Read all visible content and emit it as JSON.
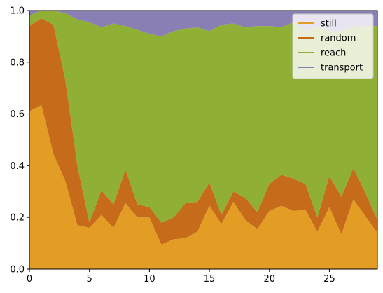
{
  "chart_data": {
    "type": "area",
    "stacked": true,
    "x": [
      0,
      1,
      2,
      3,
      4,
      5,
      6,
      7,
      8,
      9,
      10,
      11,
      12,
      13,
      14,
      15,
      16,
      17,
      18,
      19,
      20,
      21,
      22,
      23,
      24,
      25,
      26,
      27,
      28,
      29
    ],
    "series": [
      {
        "name": "still",
        "color": "#E39C24",
        "values": [
          0.61,
          0.635,
          0.445,
          0.34,
          0.17,
          0.16,
          0.21,
          0.16,
          0.255,
          0.2,
          0.2,
          0.095,
          0.115,
          0.12,
          0.145,
          0.245,
          0.175,
          0.26,
          0.19,
          0.155,
          0.225,
          0.245,
          0.225,
          0.23,
          0.145,
          0.24,
          0.135,
          0.27,
          0.205,
          0.14
        ]
      },
      {
        "name": "random",
        "color": "#C56B1A",
        "values": [
          0.33,
          0.335,
          0.5,
          0.39,
          0.23,
          0.02,
          0.095,
          0.09,
          0.13,
          0.05,
          0.04,
          0.085,
          0.085,
          0.135,
          0.115,
          0.09,
          0.035,
          0.04,
          0.085,
          0.065,
          0.105,
          0.12,
          0.125,
          0.1,
          0.055,
          0.12,
          0.145,
          0.12,
          0.09,
          0.05
        ]
      },
      {
        "name": "reach",
        "color": "#8FB034",
        "values": [
          0.04,
          0.03,
          0.055,
          0.26,
          0.565,
          0.775,
          0.63,
          0.7,
          0.555,
          0.675,
          0.67,
          0.72,
          0.72,
          0.675,
          0.675,
          0.585,
          0.735,
          0.65,
          0.66,
          0.72,
          0.61,
          0.57,
          0.605,
          0.59,
          0.74,
          0.56,
          0.64,
          0.545,
          0.645,
          0.75
        ]
      },
      {
        "name": "transport",
        "color": "#8A7FB4",
        "values": [
          0.02,
          0.0,
          0.0,
          0.01,
          0.035,
          0.045,
          0.065,
          0.05,
          0.06,
          0.075,
          0.09,
          0.1,
          0.08,
          0.07,
          0.065,
          0.08,
          0.055,
          0.05,
          0.065,
          0.06,
          0.06,
          0.065,
          0.045,
          0.08,
          0.06,
          0.08,
          0.08,
          0.065,
          0.06,
          0.06
        ]
      }
    ],
    "xlim": [
      0,
      29
    ],
    "ylim": [
      0,
      1.0
    ],
    "xticks": [
      "0",
      "5",
      "10",
      "15",
      "20",
      "25"
    ],
    "yticks": [
      "0.0",
      "0.2",
      "0.4",
      "0.6",
      "0.8",
      "1.0"
    ],
    "xtick_values": [
      0,
      5,
      10,
      15,
      20,
      25
    ],
    "ytick_values": [
      0,
      0.2,
      0.4,
      0.6,
      0.8,
      1.0
    ],
    "title": "",
    "xlabel": "",
    "ylabel": "",
    "grid": false,
    "legend_position": "top-right"
  }
}
